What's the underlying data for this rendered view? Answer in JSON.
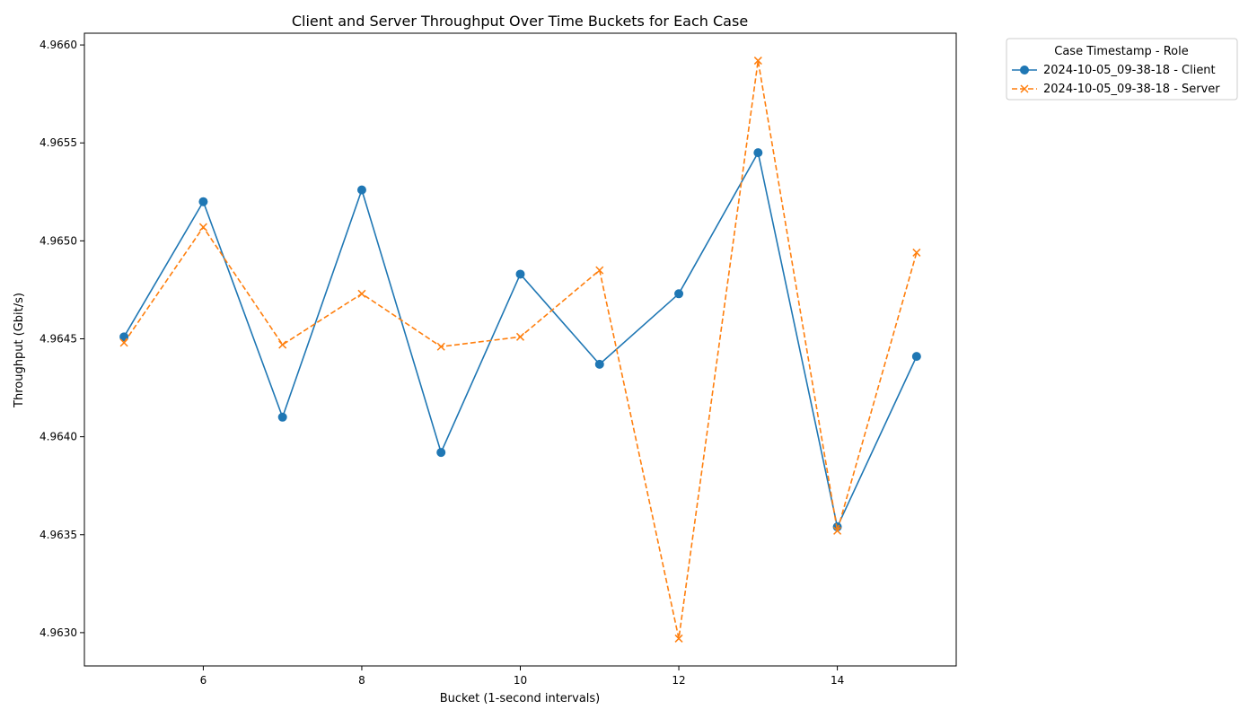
{
  "chart_data": {
    "type": "line",
    "title": "Client and Server Throughput Over Time Buckets for Each Case",
    "xlabel": "Bucket (1-second intervals)",
    "ylabel": "Throughput (Gbit/s)",
    "xlim": [
      4.5,
      15.5
    ],
    "ylim": [
      4.96283,
      4.96606
    ],
    "x_ticks": [
      6,
      8,
      10,
      12,
      14
    ],
    "y_ticks": [
      4.963,
      4.9635,
      4.964,
      4.9645,
      4.965,
      4.9655,
      4.966
    ],
    "x_tick_labels": [
      "6",
      "8",
      "10",
      "12",
      "14"
    ],
    "y_tick_labels": [
      "4.9630",
      "4.9635",
      "4.9640",
      "4.9645",
      "4.9650",
      "4.9655",
      "4.9660"
    ],
    "grid": false,
    "legend": {
      "title": "Case Timestamp - Role",
      "placement": "outside-top-right"
    },
    "x": [
      5,
      6,
      7,
      8,
      9,
      10,
      11,
      12,
      13,
      14,
      15
    ],
    "series": [
      {
        "name": "2024-10-05_09-38-18 - Client",
        "color": "#1f77b4",
        "marker": "circle",
        "line_style": "solid",
        "values": [
          4.96451,
          4.9652,
          4.9641,
          4.96526,
          4.96392,
          4.96483,
          4.96437,
          4.96473,
          4.96545,
          4.96354,
          4.96441
        ]
      },
      {
        "name": "2024-10-05_09-38-18 - Server",
        "color": "#ff7f0e",
        "marker": "x",
        "line_style": "dashed",
        "values": [
          4.96448,
          4.96507,
          4.96447,
          4.96473,
          4.96446,
          4.96451,
          4.96485,
          4.96297,
          4.96592,
          4.96352,
          4.96494
        ]
      }
    ]
  }
}
